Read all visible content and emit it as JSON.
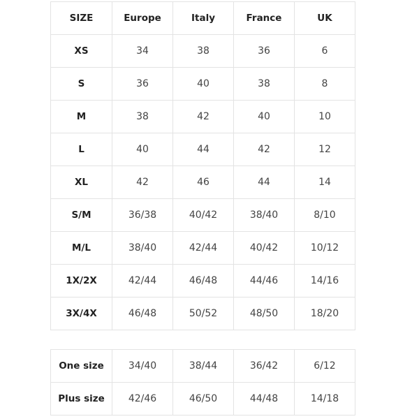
{
  "header": [
    "SIZE",
    "Europe",
    "Italy",
    "France",
    "UK"
  ],
  "rows": [
    [
      "XS",
      "34",
      "38",
      "36",
      "6"
    ],
    [
      "S",
      "36",
      "40",
      "38",
      "8"
    ],
    [
      "M",
      "38",
      "42",
      "40",
      "10"
    ],
    [
      "L",
      "40",
      "44",
      "42",
      "12"
    ],
    [
      "XL",
      "42",
      "46",
      "44",
      "14"
    ],
    [
      "S/M",
      "36/38",
      "40/42",
      "38/40",
      "8/10"
    ],
    [
      "M/L",
      "38/40",
      "42/44",
      "40/42",
      "10/12"
    ],
    [
      "1X/2X",
      "42/44",
      "46/48",
      "44/46",
      "14/16"
    ],
    [
      "3X/4X",
      "46/48",
      "50/52",
      "48/50",
      "18/20"
    ]
  ],
  "extra_rows": [
    [
      "One size",
      "34/40",
      "38/44",
      "36/42",
      "6/12"
    ],
    [
      "Plus size",
      "42/46",
      "46/50",
      "44/48",
      "14/18"
    ]
  ]
}
